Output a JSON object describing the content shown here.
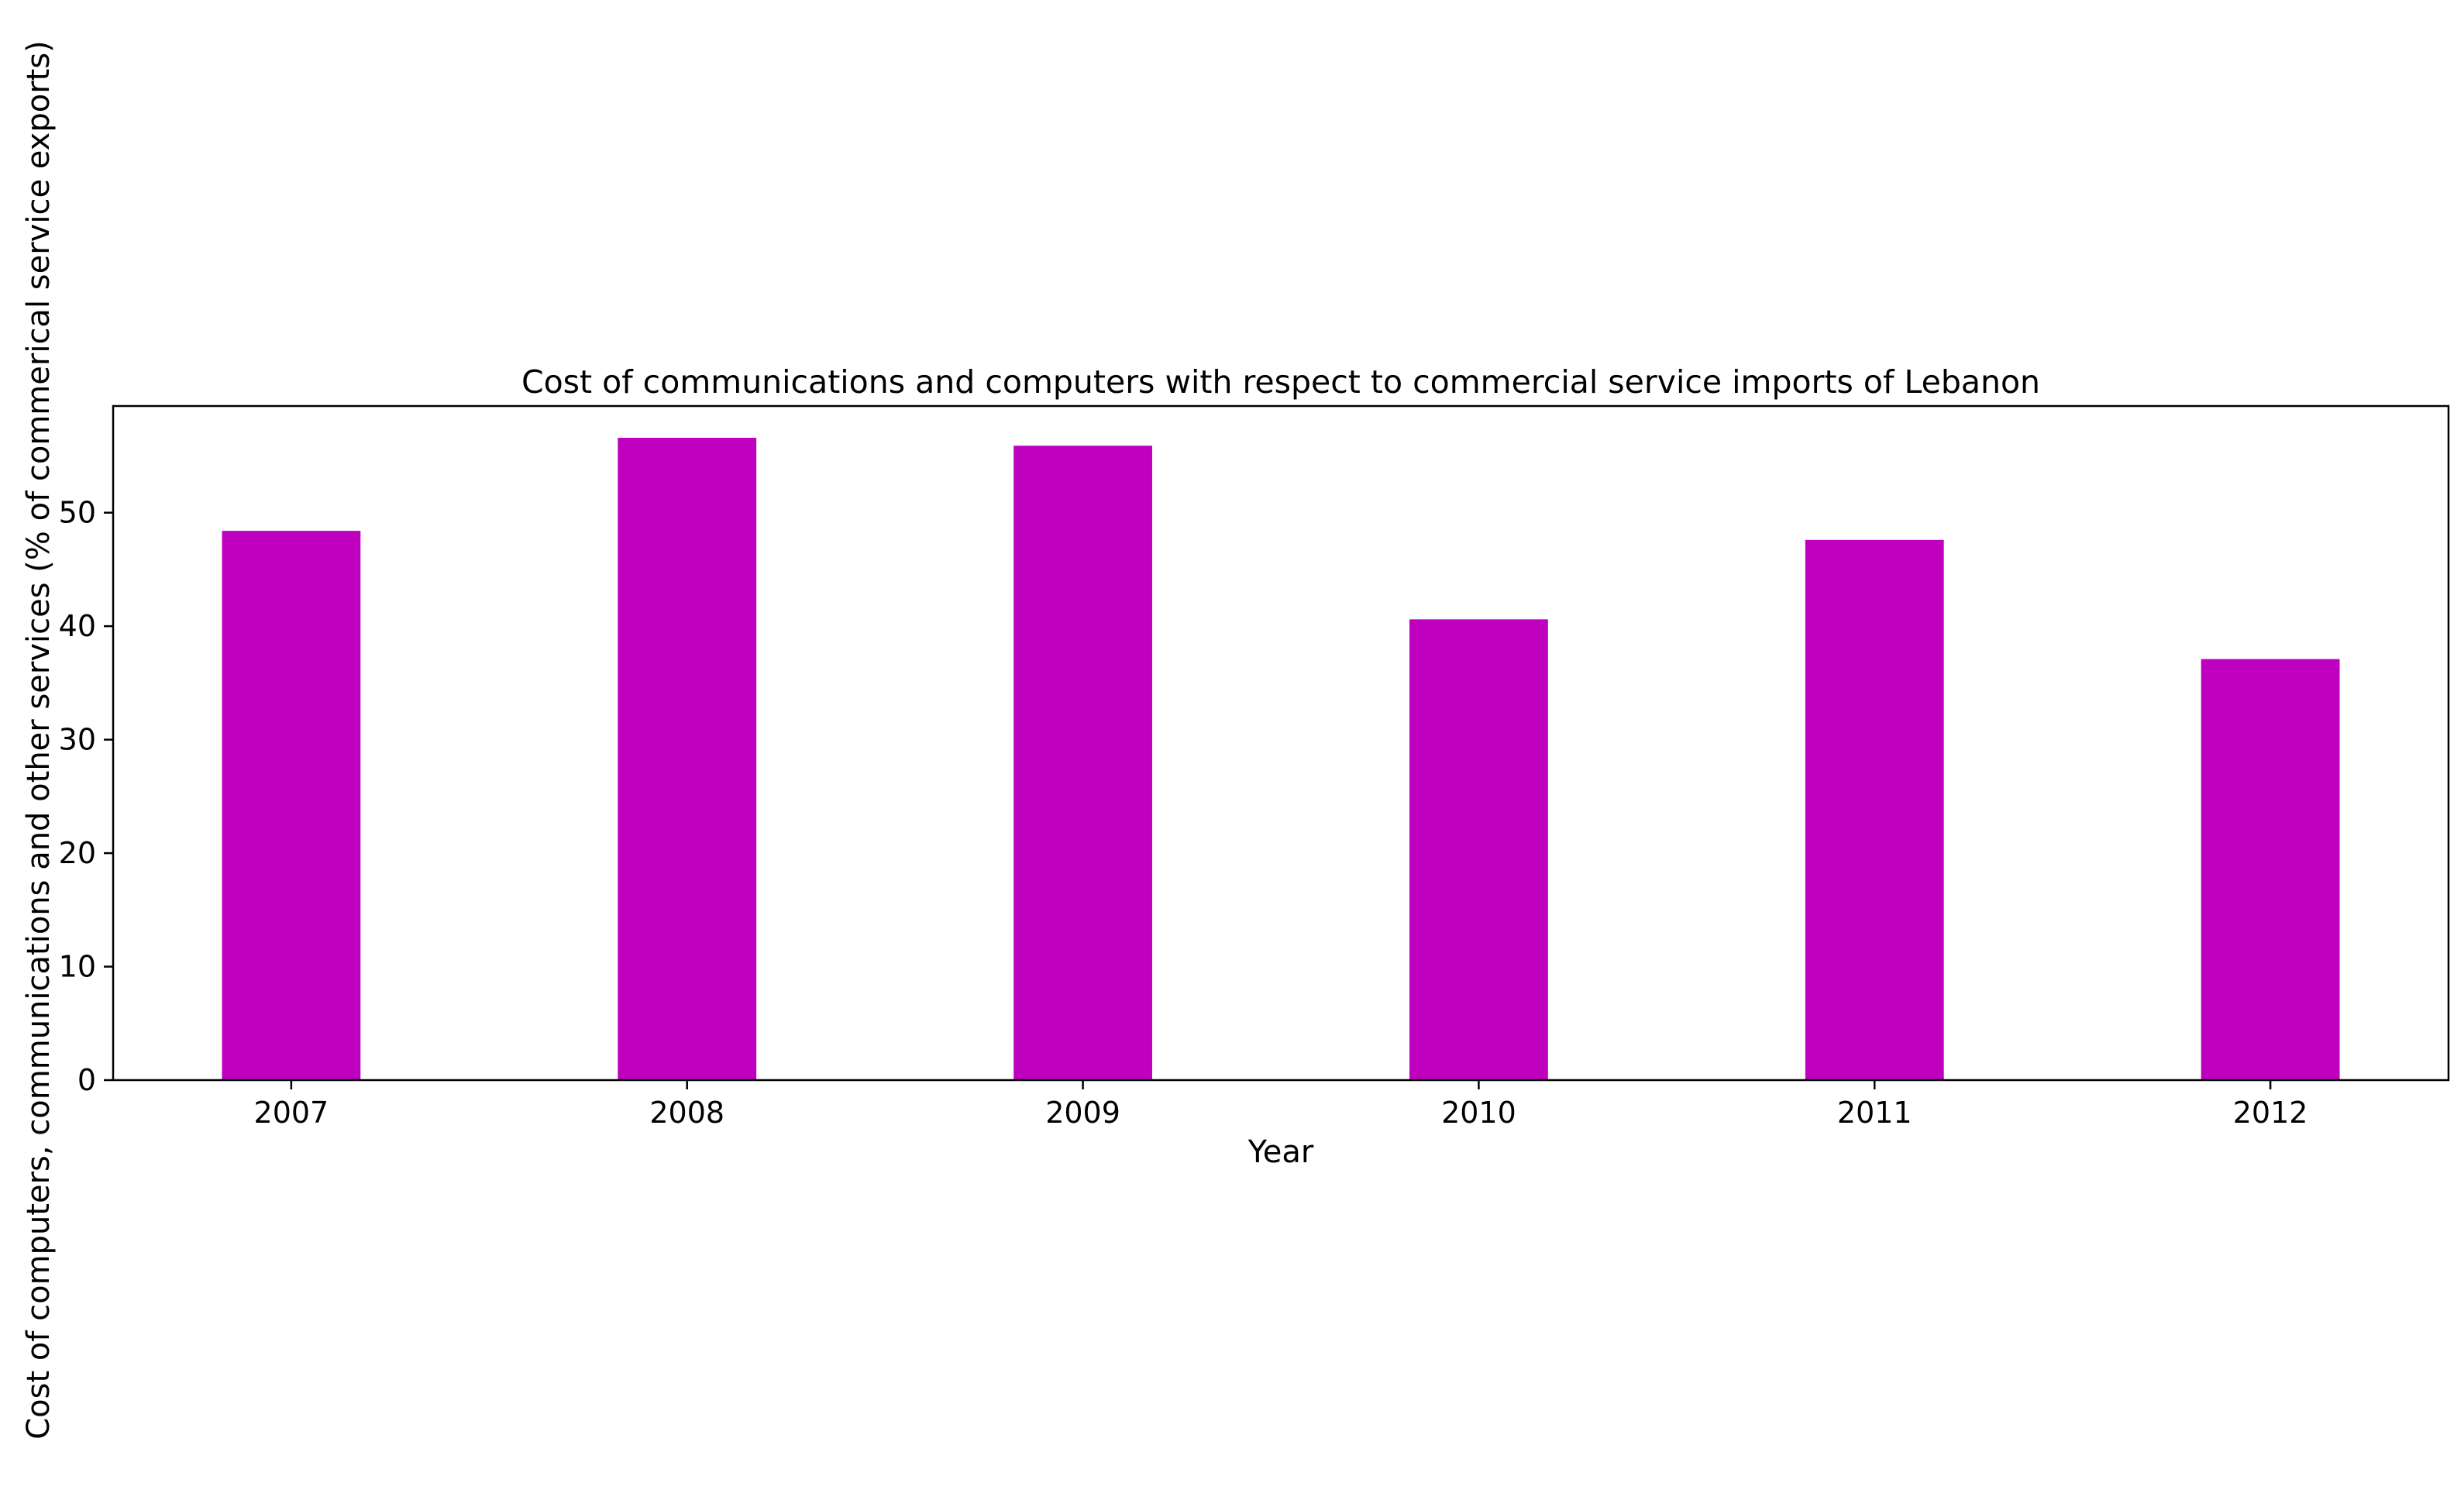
{
  "chart_data": {
    "type": "bar",
    "title": "Cost of communications and computers with respect to commercial service imports of Lebanon",
    "xlabel": "Year",
    "ylabel": "Cost of computers, communications and other services (% of commerical service exports)",
    "categories": [
      "2007",
      "2008",
      "2009",
      "2010",
      "2011",
      "2012"
    ],
    "values": [
      48.4,
      56.6,
      55.9,
      40.6,
      47.6,
      37.1
    ],
    "ylim": [
      0,
      59.4
    ],
    "yticks": [
      0,
      10,
      20,
      30,
      40,
      50
    ],
    "bar_color": "#bf00bf",
    "grid": false,
    "legend": "none"
  }
}
